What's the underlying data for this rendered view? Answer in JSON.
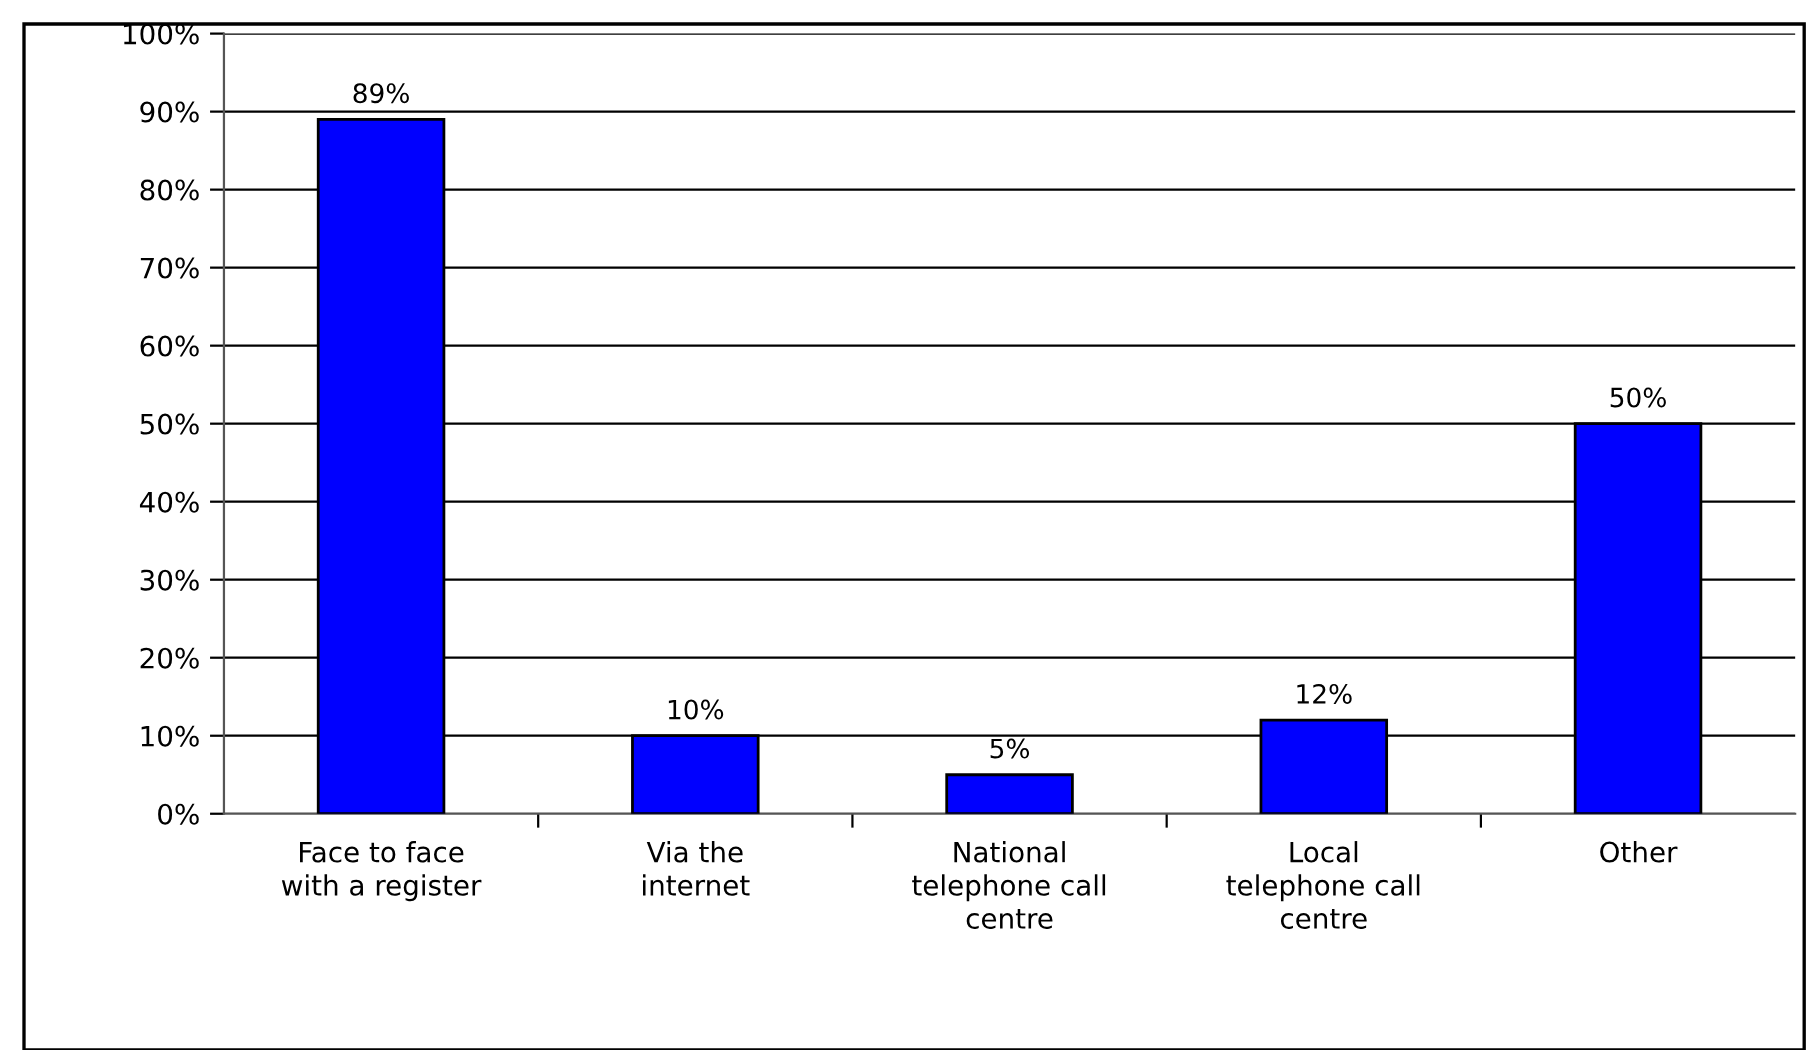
{
  "chart_data": {
    "type": "bar",
    "categories": [
      "Face to face\nwith a register",
      "Via the\ninternet",
      "National\ntelephone call\ncentre",
      "Local\ntelephone call\ncentre",
      "Other"
    ],
    "values": [
      89,
      10,
      5,
      12,
      50
    ],
    "color": "#0000ff",
    "value_labels": [
      "89%",
      "10%",
      "5%",
      "12%",
      "50%"
    ],
    "ylim": [
      0,
      100
    ],
    "yticks": [
      {
        "value": 0,
        "label": "0%"
      },
      {
        "value": 10,
        "label": "10%"
      },
      {
        "value": 20,
        "label": "20%"
      },
      {
        "value": 30,
        "label": "30%"
      },
      {
        "value": 40,
        "label": "40%"
      },
      {
        "value": 50,
        "label": "50%"
      },
      {
        "value": 60,
        "label": "60%"
      },
      {
        "value": 70,
        "label": "70%"
      },
      {
        "value": 80,
        "label": "80%"
      },
      {
        "value": 90,
        "label": "90%"
      },
      {
        "value": 100,
        "label": "100%"
      }
    ],
    "grid": "y"
  }
}
